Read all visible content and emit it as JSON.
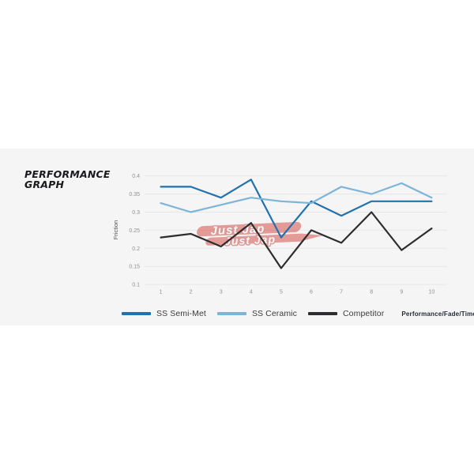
{
  "page": {
    "background": "#ffffff",
    "panel_background": "#f5f5f6",
    "gridline_color": "#e7e7e8",
    "tick_label_color": "#8f8f91",
    "axis_title_color": "#4d4d4f"
  },
  "title": {
    "line1": "PERFORMANCE",
    "line2": "GRAPH"
  },
  "watermark": {
    "text_top": "Just Jap",
    "text_bottom": "Just Jap",
    "color": "#d5433c"
  },
  "legend": {
    "items": [
      {
        "label": "SS Semi-Met",
        "color": "#2171ad"
      },
      {
        "label": "SS Ceramic",
        "color": "#7db5d8"
      },
      {
        "label": "Competitor",
        "color": "#2d2d2f"
      }
    ],
    "note": "Performance/Fade/Time"
  },
  "chart_data": {
    "type": "line",
    "title": "Performance Graph",
    "xlabel": "",
    "ylabel": "Friction",
    "x": [
      1,
      2,
      3,
      4,
      5,
      6,
      7,
      8,
      9,
      10
    ],
    "y_ticks": [
      0.4,
      0.35,
      0.3,
      0.25,
      0.2,
      0.15,
      0.1
    ],
    "ylim": [
      0.1,
      0.4
    ],
    "grid": "horizontal",
    "legend_position": "bottom",
    "series": [
      {
        "name": "SS Semi-Met",
        "color": "#2171ad",
        "values": [
          0.37,
          0.37,
          0.34,
          0.39,
          0.23,
          0.33,
          0.29,
          0.33,
          0.33,
          0.33
        ]
      },
      {
        "name": "SS Ceramic",
        "color": "#7db5d8",
        "values": [
          0.325,
          0.3,
          0.32,
          0.34,
          0.33,
          0.325,
          0.37,
          0.35,
          0.38,
          0.34
        ]
      },
      {
        "name": "Competitor",
        "color": "#2d2d2f",
        "values": [
          0.23,
          0.24,
          0.205,
          0.27,
          0.145,
          0.25,
          0.215,
          0.3,
          0.195,
          0.255
        ]
      }
    ]
  }
}
